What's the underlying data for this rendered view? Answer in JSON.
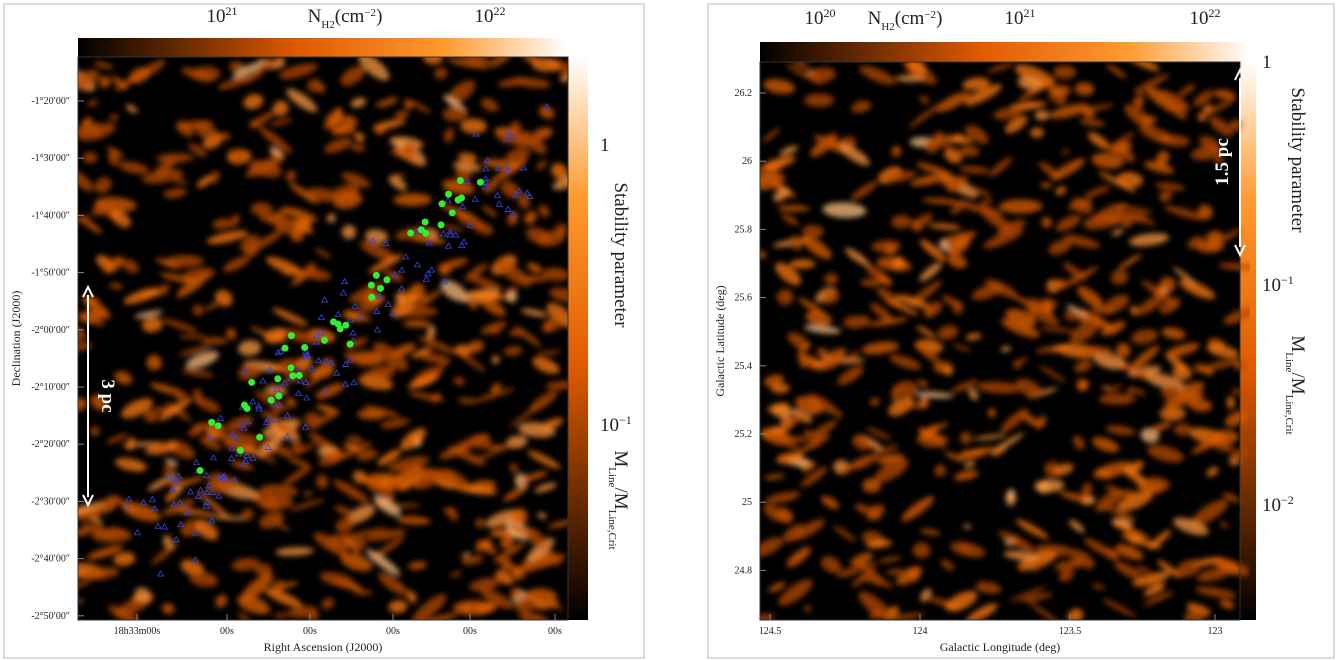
{
  "panels": [
    {
      "colorbar_top": {
        "label": {
          "main": "N",
          "sub": "H2",
          "unit": "(cm",
          "exp": "−2",
          "close": ")"
        },
        "ticks": [
          {
            "base": "10",
            "exp": "21"
          },
          {
            "base": "10",
            "exp": "22"
          }
        ]
      },
      "colorbar_right": {
        "ticks": [
          {
            "base": "1",
            "exp": ""
          },
          {
            "base": "10",
            "exp": "−1"
          }
        ],
        "label": "Stability parameter",
        "ratio": {
          "m1": "M",
          "s1": "Line",
          "m2": "/M",
          "s2": "Line,Crit"
        }
      },
      "yticks": [
        "-1°20′00″",
        "-1°30′00″",
        "-1°40′00″",
        "-1°50′00″",
        "-2°00′00″",
        "-2°10′00″",
        "-2°20′00″",
        "-2°30′00″",
        "-2°40′00″",
        "-2°50′00″"
      ],
      "xticks": [
        "18h33m00s",
        "00s",
        "00s",
        "00s",
        "00s",
        "00s"
      ],
      "ylabel": "Declination (J2000)",
      "xlabel": "Right Ascension (J2000)",
      "scale_bar": "3 pc"
    },
    {
      "colorbar_top": {
        "label": {
          "main": "N",
          "sub": "H2",
          "unit": "(cm",
          "exp": "−2",
          "close": ")"
        },
        "ticks": [
          {
            "base": "10",
            "exp": "20"
          },
          {
            "base": "10",
            "exp": "21"
          },
          {
            "base": "10",
            "exp": "22"
          }
        ]
      },
      "colorbar_right": {
        "ticks": [
          {
            "base": "1",
            "exp": ""
          },
          {
            "base": "10",
            "exp": "−1"
          },
          {
            "base": "10",
            "exp": "−2"
          }
        ],
        "label": "Stability parameter",
        "ratio": {
          "m1": "M",
          "s1": "Line",
          "m2": "/M",
          "s2": "Line,Crit"
        }
      },
      "yticks": [
        "26.2",
        "26",
        "25.8",
        "25.6",
        "25.4",
        "25.2",
        "25",
        "24.8"
      ],
      "xticks": [
        "124.5",
        "124",
        "123.5",
        "123"
      ],
      "ylabel": "Galactic Latitude (deg)",
      "xlabel": "Galactic Longitude (deg)",
      "scale_bar": "1.5 pc"
    }
  ]
}
